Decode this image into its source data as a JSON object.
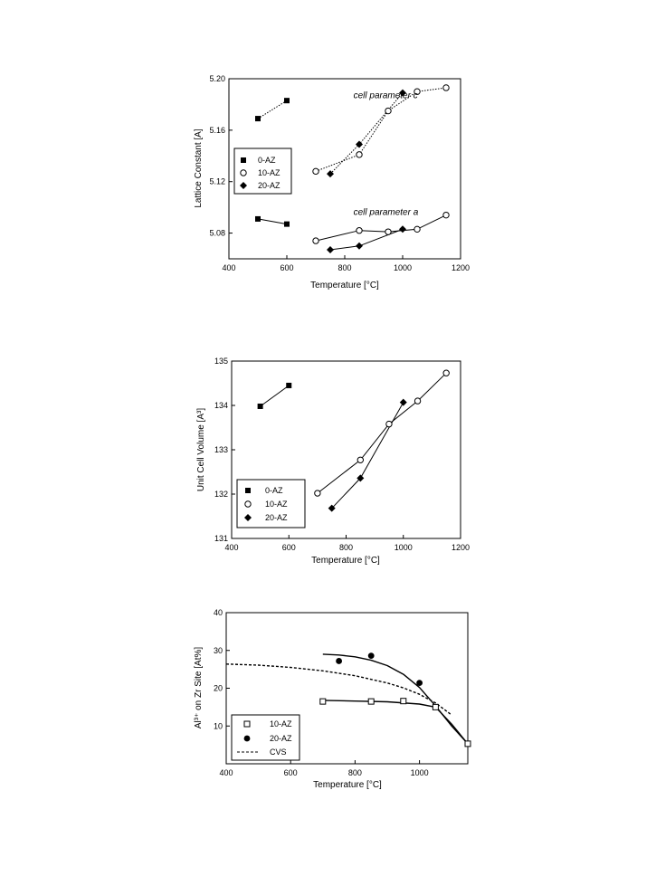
{
  "chart_data": [
    {
      "type": "line",
      "xlabel": "Temperature [°C]",
      "ylabel": "Lattice Constant [A]",
      "xlim": [
        400,
        1200
      ],
      "ylim": [
        5.06,
        5.2
      ],
      "xticks": [
        400,
        600,
        800,
        1000,
        1200
      ],
      "yticks": [
        "5.08",
        "5.12",
        "5.16",
        "5.20"
      ],
      "ytick_values": [
        5.08,
        5.12,
        5.16,
        5.2
      ],
      "legend": {
        "placement": "left",
        "entries": [
          "0-AZ",
          "10-AZ",
          "20-AZ"
        ]
      },
      "annotations": [
        {
          "text": "cell parameter c",
          "x": 830,
          "y": 5.185
        },
        {
          "text": "cell parameter a",
          "x": 830,
          "y": 5.094
        }
      ],
      "series": [
        {
          "name": "0-AZ",
          "group": "c",
          "marker": "filled-square",
          "line": "dotted",
          "x": [
            500,
            600
          ],
          "y": [
            5.169,
            5.183
          ]
        },
        {
          "name": "10-AZ",
          "group": "c",
          "marker": "open-circle",
          "line": "dotted",
          "x": [
            700,
            850,
            950,
            1050,
            1150
          ],
          "y": [
            5.128,
            5.141,
            5.175,
            5.19,
            5.193
          ]
        },
        {
          "name": "20-AZ",
          "group": "c",
          "marker": "filled-diamond",
          "line": "dotted",
          "x": [
            750,
            850,
            1000
          ],
          "y": [
            5.126,
            5.149,
            5.189
          ]
        },
        {
          "name": "0-AZ",
          "group": "a",
          "marker": "filled-square",
          "line": "solid",
          "x": [
            500,
            600
          ],
          "y": [
            5.091,
            5.087
          ]
        },
        {
          "name": "10-AZ",
          "group": "a",
          "marker": "open-circle",
          "line": "solid",
          "x": [
            700,
            850,
            950,
            1050,
            1150
          ],
          "y": [
            5.074,
            5.082,
            5.081,
            5.083,
            5.094
          ]
        },
        {
          "name": "20-AZ",
          "group": "a",
          "marker": "filled-diamond",
          "line": "solid",
          "x": [
            750,
            850,
            1000
          ],
          "y": [
            5.067,
            5.07,
            5.083
          ]
        }
      ]
    },
    {
      "type": "line",
      "xlabel": "Temperature [°C]",
      "ylabel": "Unit Cell Volume [A³]",
      "xlim": [
        400,
        1200
      ],
      "ylim": [
        131,
        135
      ],
      "xticks": [
        400,
        600,
        800,
        1000,
        1200
      ],
      "yticks": [
        "131",
        "132",
        "133",
        "134",
        "135"
      ],
      "ytick_values": [
        131,
        132,
        133,
        134,
        135
      ],
      "legend": {
        "placement": "bottom-left",
        "entries": [
          "0-AZ",
          "10-AZ",
          "20-AZ"
        ]
      },
      "series": [
        {
          "name": "0-AZ",
          "marker": "filled-square",
          "line": "solid",
          "x": [
            500,
            600
          ],
          "y": [
            133.98,
            134.45
          ]
        },
        {
          "name": "10-AZ",
          "marker": "open-circle",
          "line": "solid",
          "x": [
            700,
            850,
            950,
            1050,
            1150
          ],
          "y": [
            132.02,
            132.77,
            133.58,
            134.1,
            134.73
          ]
        },
        {
          "name": "20-AZ",
          "marker": "filled-diamond",
          "line": "solid",
          "x": [
            750,
            850,
            1000
          ],
          "y": [
            131.68,
            132.36,
            134.07
          ]
        }
      ]
    },
    {
      "type": "scatter",
      "xlabel": "Temperature [°C]",
      "ylabel": "Al³⁺ on Zr Site [At%]",
      "xlim": [
        400,
        1150
      ],
      "ylim": [
        0,
        40
      ],
      "xticks": [
        400,
        600,
        800,
        1000
      ],
      "yticks": [
        "10",
        "20",
        "30",
        "40"
      ],
      "ytick_values": [
        10,
        20,
        30,
        40
      ],
      "legend": {
        "placement": "bottom-left",
        "entries": [
          "10-AZ",
          "20-AZ",
          "CVS"
        ]
      },
      "series": [
        {
          "name": "10-AZ",
          "marker": "open-square",
          "x": [
            700,
            850,
            950,
            1050,
            1150
          ],
          "y": [
            16.5,
            16.5,
            16.6,
            15.0,
            5.3
          ],
          "fit": {
            "x": [
              700,
              800,
              900,
              1000,
              1050,
              1100,
              1150
            ],
            "y": [
              16.8,
              16.6,
              16.4,
              15.8,
              15.0,
              10.5,
              5.3
            ]
          }
        },
        {
          "name": "20-AZ",
          "marker": "filled-circle",
          "x": [
            750,
            850,
            1000
          ],
          "y": [
            27.2,
            28.6,
            21.4
          ],
          "fit": {
            "x": [
              700,
              750,
              800,
              850,
              900,
              950,
              1000,
              1050,
              1100,
              1150
            ],
            "y": [
              29.0,
              28.8,
              28.3,
              27.4,
              26.0,
              23.7,
              20.2,
              15.3,
              10.0,
              5.3
            ]
          }
        },
        {
          "name": "CVS",
          "line": "dashed",
          "x": [
            400,
            500,
            600,
            700,
            800,
            900,
            950,
            1000,
            1050,
            1100
          ],
          "y": [
            26.4,
            26.1,
            25.5,
            24.6,
            23.3,
            21.4,
            20.1,
            18.4,
            16.1,
            12.9
          ]
        }
      ]
    }
  ]
}
